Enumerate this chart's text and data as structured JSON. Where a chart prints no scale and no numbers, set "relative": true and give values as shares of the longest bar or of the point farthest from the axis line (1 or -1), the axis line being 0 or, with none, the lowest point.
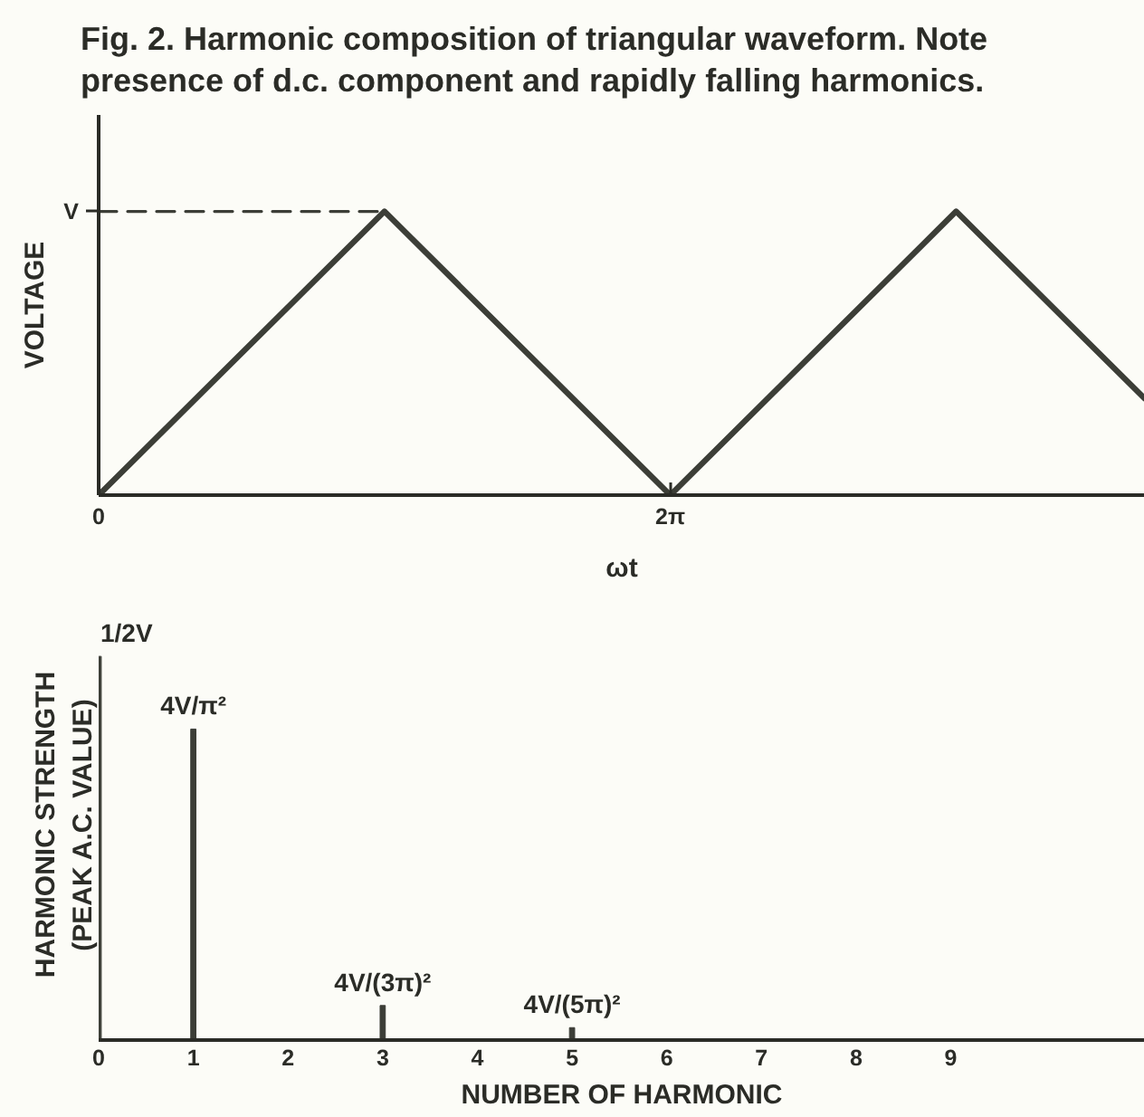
{
  "chart_data": [
    {
      "type": "line",
      "title": "Fig. 2. Harmonic composition of triangular waveform. Note presence of d.c. component and rapidly falling harmonics.",
      "xlabel": "ωt",
      "ylabel": "VOLTAGE",
      "line_style": "solid",
      "relative": true,
      "series": [
        {
          "type": "line",
          "color": "#3c3e37",
          "x": [
            0,
            3.1416,
            6.2832,
            9.4248,
            11.5
          ],
          "values": [
            0,
            1,
            0,
            1,
            0.34
          ]
        },
        {
          "type": "line",
          "line_style": "dashed",
          "color": "#3c3e37",
          "x": [
            0,
            3.1416
          ],
          "values": [
            1,
            1
          ]
        }
      ],
      "xlim": [
        0,
        11.5
      ],
      "xticks": [
        0,
        {
          "value": 6.2832,
          "label": "2π"
        }
      ],
      "annotations": [
        {
          "text": "V",
          "x": 0,
          "y": 1
        }
      ]
    },
    {
      "type": "bar",
      "xlabel": "NUMBER OF HARMONIC",
      "ylabel": "HARMONIC STRENGTH (PEAK A.C. VALUE)",
      "relative": true,
      "x": [
        0,
        1,
        3,
        5
      ],
      "values": [
        1,
        0.8106,
        0.0901,
        0.0324
      ],
      "color": "#3c3e37",
      "xlim": [
        0,
        11.05
      ],
      "xticks": [
        0,
        1,
        2,
        3,
        4,
        5,
        6,
        7,
        8,
        9
      ],
      "annotations": [
        {
          "text": "1/2V",
          "x": 0,
          "y": 1
        },
        {
          "text": "4V/π²",
          "x": 1,
          "y": 0.8106
        },
        {
          "text": "4V/(3π)²",
          "x": 3,
          "y": 0.0901
        },
        {
          "text": "4V/(5π)²",
          "x": 5,
          "y": 0.0324
        }
      ]
    }
  ]
}
